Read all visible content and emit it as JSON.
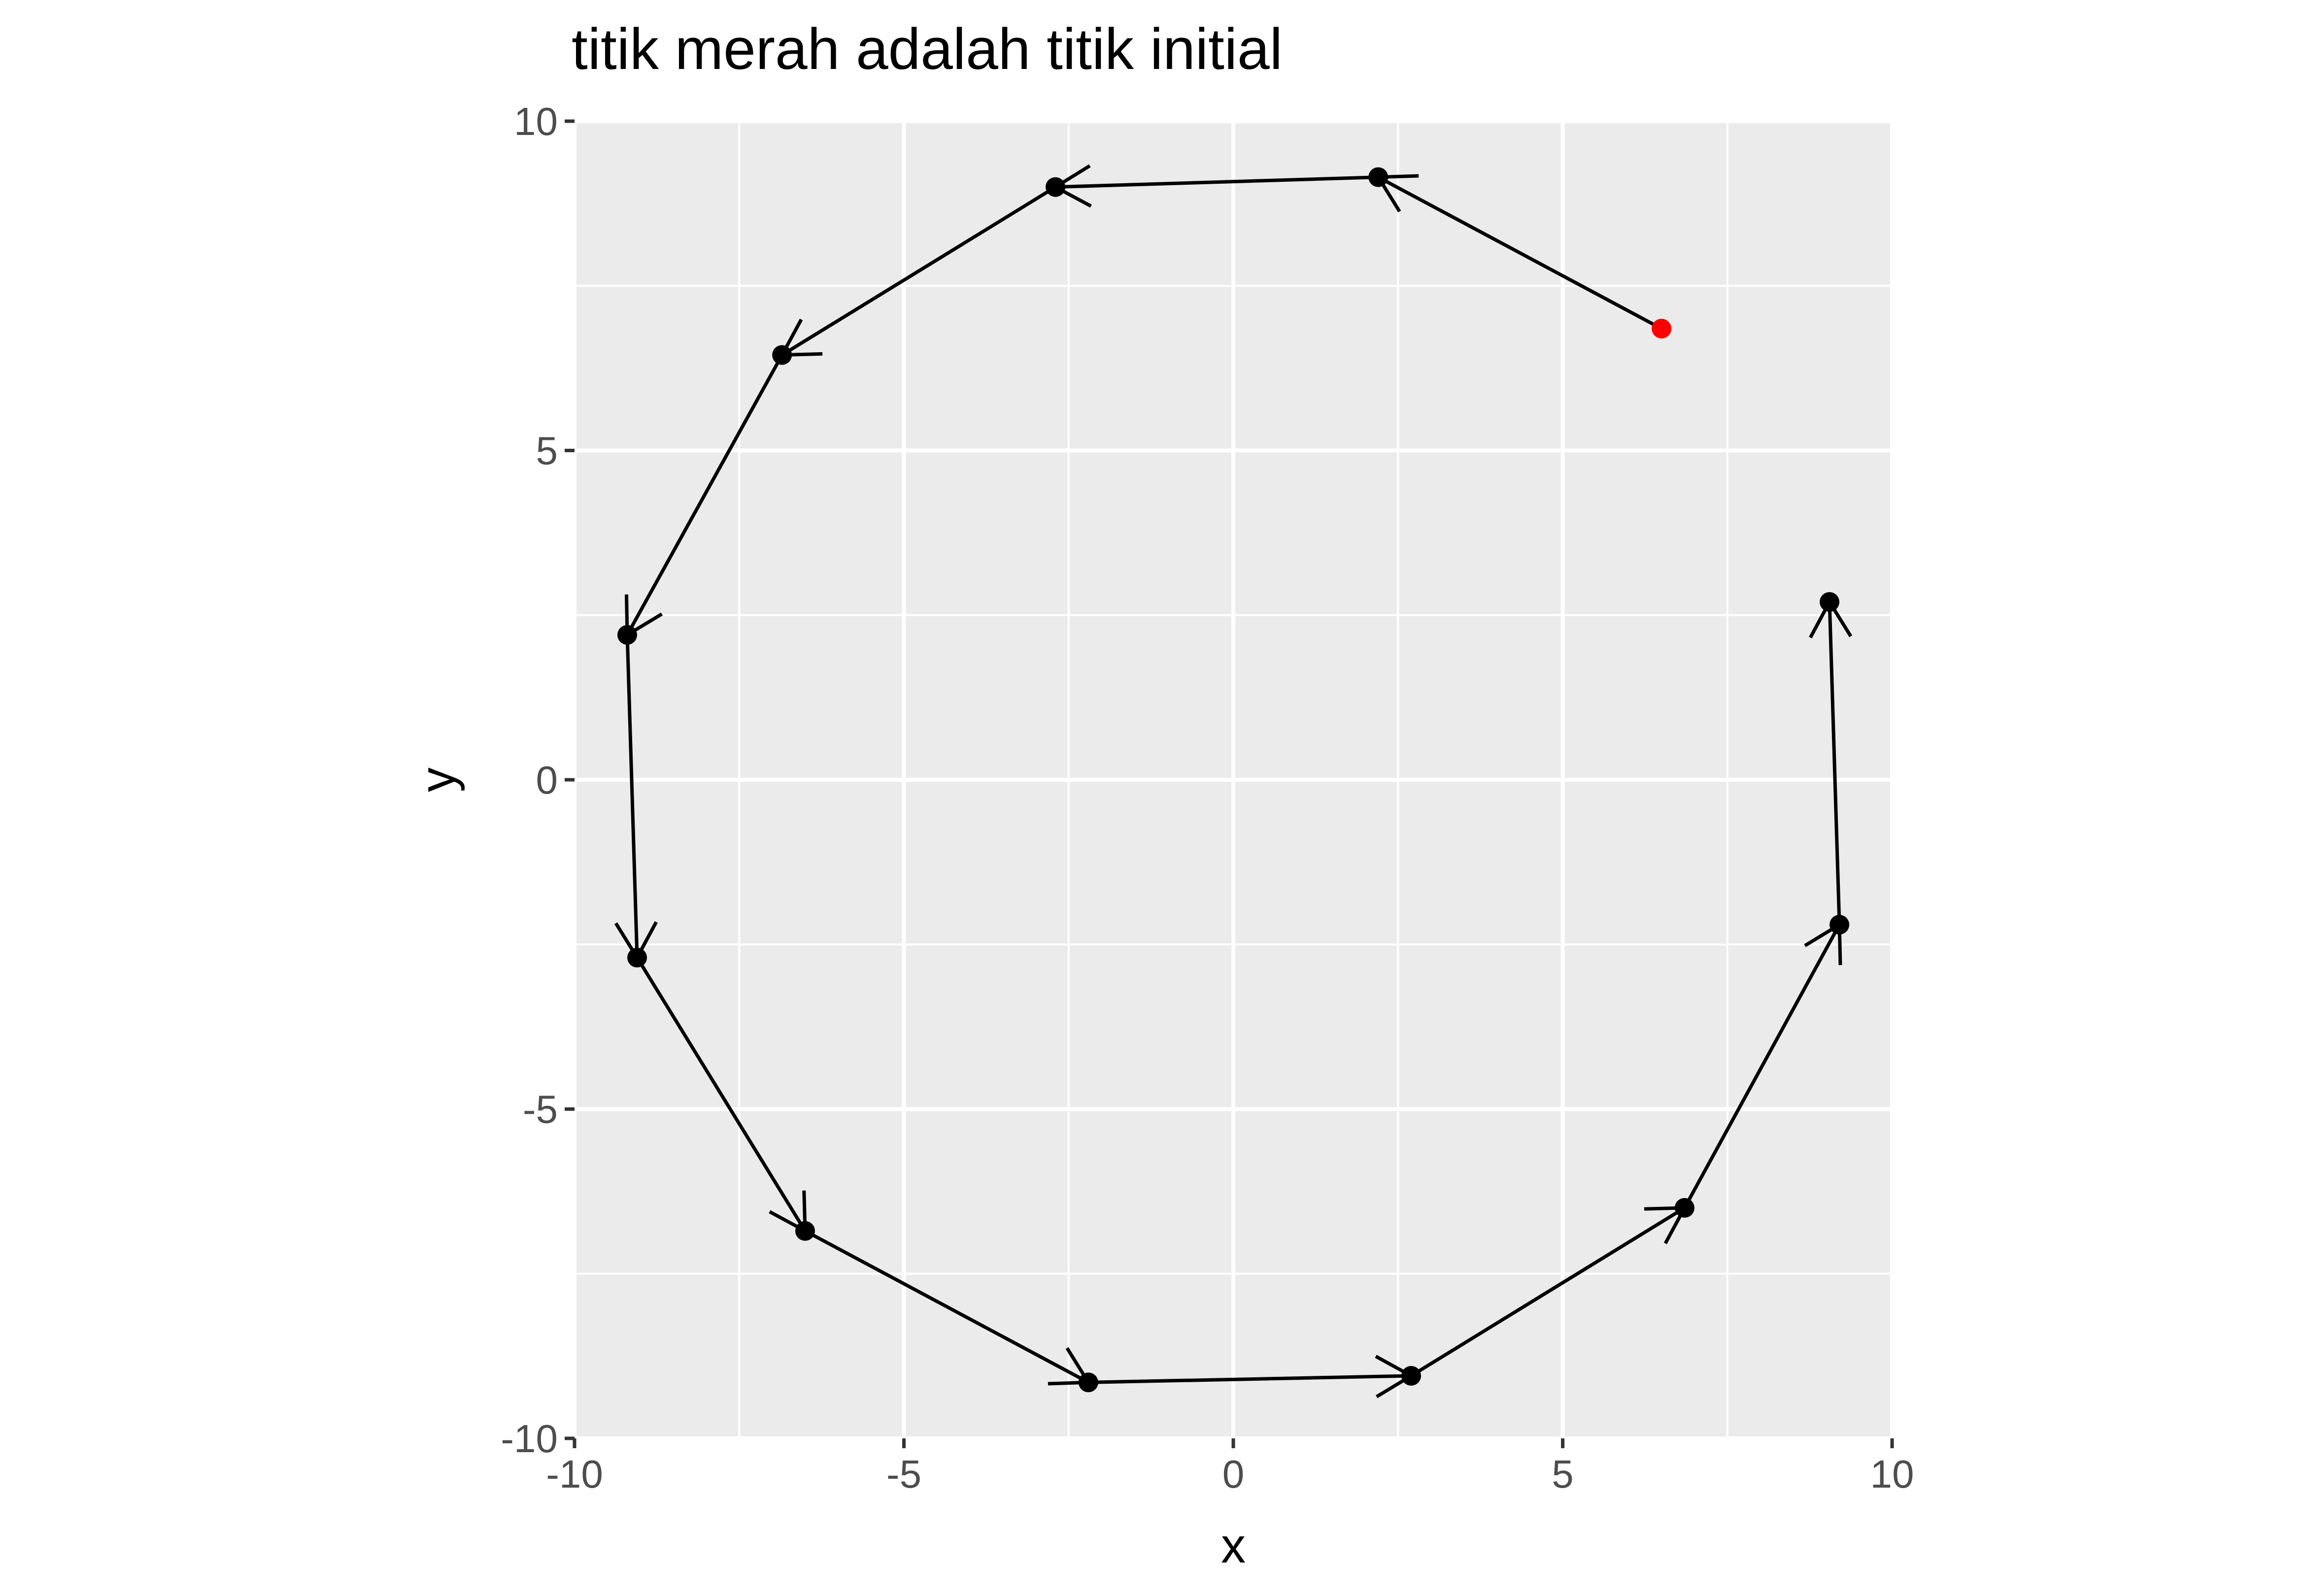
{
  "chart_data": {
    "type": "scatter",
    "title": "titik merah adalah titik initial",
    "xlabel": "x",
    "ylabel": "y",
    "xlim": [
      -10,
      10
    ],
    "ylim": [
      -10,
      10
    ],
    "x_ticks": [
      -10,
      -5,
      0,
      5,
      10
    ],
    "y_ticks": [
      -10,
      -5,
      0,
      5,
      10
    ],
    "x_tick_labels": [
      "-10",
      "-5",
      "0",
      "5",
      "10"
    ],
    "y_tick_labels": [
      "-10",
      "-5",
      "0",
      "5",
      "10"
    ],
    "grid": true,
    "panel_background": "#ebebeb",
    "grid_color": "#ffffff",
    "initial_point_color": "#ff0000",
    "point_color": "#000000",
    "arrow_color": "#000000",
    "points": [
      {
        "x": 6.5,
        "y": 6.85,
        "initial": true
      },
      {
        "x": 2.2,
        "y": 9.15
      },
      {
        "x": -2.7,
        "y": 9.0
      },
      {
        "x": -6.85,
        "y": 6.45
      },
      {
        "x": -9.2,
        "y": 2.2
      },
      {
        "x": -9.05,
        "y": -2.7
      },
      {
        "x": -6.5,
        "y": -6.85
      },
      {
        "x": -2.2,
        "y": -9.15
      },
      {
        "x": 2.7,
        "y": -9.05
      },
      {
        "x": 6.85,
        "y": -6.5
      },
      {
        "x": 9.2,
        "y": -2.2
      },
      {
        "x": 9.05,
        "y": 2.7
      }
    ]
  }
}
